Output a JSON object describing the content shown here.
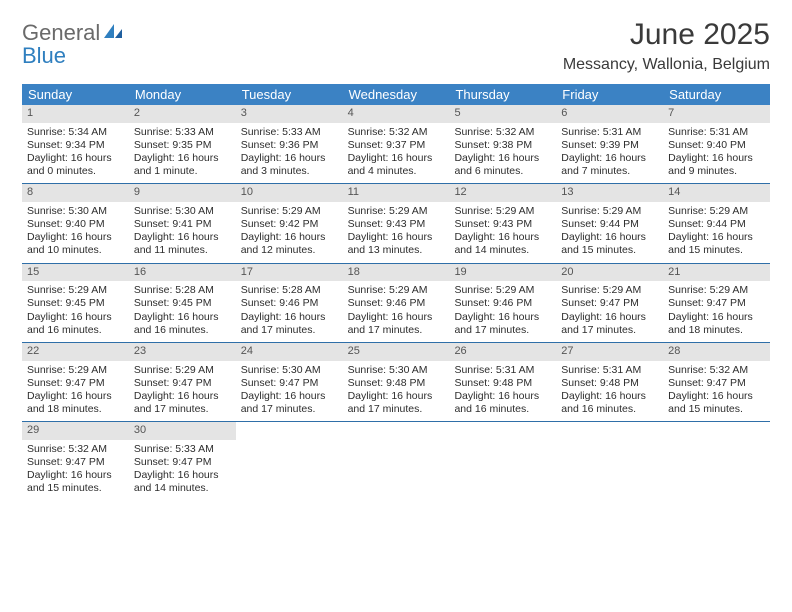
{
  "brand": {
    "part1": "General",
    "part2": "Blue"
  },
  "title": "June 2025",
  "location": "Messancy, Wallonia, Belgium",
  "colors": {
    "header_bg": "#3b82c4",
    "row_border": "#2f6fa8",
    "daynum_bg": "#e4e4e4",
    "text": "#2d2d2d",
    "logo_gray": "#6a6a6a",
    "logo_blue": "#2f7fbf"
  },
  "weekdays": [
    "Sunday",
    "Monday",
    "Tuesday",
    "Wednesday",
    "Thursday",
    "Friday",
    "Saturday"
  ],
  "weeks": [
    [
      {
        "d": "1",
        "sr": "Sunrise: 5:34 AM",
        "ss": "Sunset: 9:34 PM",
        "dl1": "Daylight: 16 hours",
        "dl2": "and 0 minutes."
      },
      {
        "d": "2",
        "sr": "Sunrise: 5:33 AM",
        "ss": "Sunset: 9:35 PM",
        "dl1": "Daylight: 16 hours",
        "dl2": "and 1 minute."
      },
      {
        "d": "3",
        "sr": "Sunrise: 5:33 AM",
        "ss": "Sunset: 9:36 PM",
        "dl1": "Daylight: 16 hours",
        "dl2": "and 3 minutes."
      },
      {
        "d": "4",
        "sr": "Sunrise: 5:32 AM",
        "ss": "Sunset: 9:37 PM",
        "dl1": "Daylight: 16 hours",
        "dl2": "and 4 minutes."
      },
      {
        "d": "5",
        "sr": "Sunrise: 5:32 AM",
        "ss": "Sunset: 9:38 PM",
        "dl1": "Daylight: 16 hours",
        "dl2": "and 6 minutes."
      },
      {
        "d": "6",
        "sr": "Sunrise: 5:31 AM",
        "ss": "Sunset: 9:39 PM",
        "dl1": "Daylight: 16 hours",
        "dl2": "and 7 minutes."
      },
      {
        "d": "7",
        "sr": "Sunrise: 5:31 AM",
        "ss": "Sunset: 9:40 PM",
        "dl1": "Daylight: 16 hours",
        "dl2": "and 9 minutes."
      }
    ],
    [
      {
        "d": "8",
        "sr": "Sunrise: 5:30 AM",
        "ss": "Sunset: 9:40 PM",
        "dl1": "Daylight: 16 hours",
        "dl2": "and 10 minutes."
      },
      {
        "d": "9",
        "sr": "Sunrise: 5:30 AM",
        "ss": "Sunset: 9:41 PM",
        "dl1": "Daylight: 16 hours",
        "dl2": "and 11 minutes."
      },
      {
        "d": "10",
        "sr": "Sunrise: 5:29 AM",
        "ss": "Sunset: 9:42 PM",
        "dl1": "Daylight: 16 hours",
        "dl2": "and 12 minutes."
      },
      {
        "d": "11",
        "sr": "Sunrise: 5:29 AM",
        "ss": "Sunset: 9:43 PM",
        "dl1": "Daylight: 16 hours",
        "dl2": "and 13 minutes."
      },
      {
        "d": "12",
        "sr": "Sunrise: 5:29 AM",
        "ss": "Sunset: 9:43 PM",
        "dl1": "Daylight: 16 hours",
        "dl2": "and 14 minutes."
      },
      {
        "d": "13",
        "sr": "Sunrise: 5:29 AM",
        "ss": "Sunset: 9:44 PM",
        "dl1": "Daylight: 16 hours",
        "dl2": "and 15 minutes."
      },
      {
        "d": "14",
        "sr": "Sunrise: 5:29 AM",
        "ss": "Sunset: 9:44 PM",
        "dl1": "Daylight: 16 hours",
        "dl2": "and 15 minutes."
      }
    ],
    [
      {
        "d": "15",
        "sr": "Sunrise: 5:29 AM",
        "ss": "Sunset: 9:45 PM",
        "dl1": "Daylight: 16 hours",
        "dl2": "and 16 minutes."
      },
      {
        "d": "16",
        "sr": "Sunrise: 5:28 AM",
        "ss": "Sunset: 9:45 PM",
        "dl1": "Daylight: 16 hours",
        "dl2": "and 16 minutes."
      },
      {
        "d": "17",
        "sr": "Sunrise: 5:28 AM",
        "ss": "Sunset: 9:46 PM",
        "dl1": "Daylight: 16 hours",
        "dl2": "and 17 minutes."
      },
      {
        "d": "18",
        "sr": "Sunrise: 5:29 AM",
        "ss": "Sunset: 9:46 PM",
        "dl1": "Daylight: 16 hours",
        "dl2": "and 17 minutes."
      },
      {
        "d": "19",
        "sr": "Sunrise: 5:29 AM",
        "ss": "Sunset: 9:46 PM",
        "dl1": "Daylight: 16 hours",
        "dl2": "and 17 minutes."
      },
      {
        "d": "20",
        "sr": "Sunrise: 5:29 AM",
        "ss": "Sunset: 9:47 PM",
        "dl1": "Daylight: 16 hours",
        "dl2": "and 17 minutes."
      },
      {
        "d": "21",
        "sr": "Sunrise: 5:29 AM",
        "ss": "Sunset: 9:47 PM",
        "dl1": "Daylight: 16 hours",
        "dl2": "and 18 minutes."
      }
    ],
    [
      {
        "d": "22",
        "sr": "Sunrise: 5:29 AM",
        "ss": "Sunset: 9:47 PM",
        "dl1": "Daylight: 16 hours",
        "dl2": "and 18 minutes."
      },
      {
        "d": "23",
        "sr": "Sunrise: 5:29 AM",
        "ss": "Sunset: 9:47 PM",
        "dl1": "Daylight: 16 hours",
        "dl2": "and 17 minutes."
      },
      {
        "d": "24",
        "sr": "Sunrise: 5:30 AM",
        "ss": "Sunset: 9:47 PM",
        "dl1": "Daylight: 16 hours",
        "dl2": "and 17 minutes."
      },
      {
        "d": "25",
        "sr": "Sunrise: 5:30 AM",
        "ss": "Sunset: 9:48 PM",
        "dl1": "Daylight: 16 hours",
        "dl2": "and 17 minutes."
      },
      {
        "d": "26",
        "sr": "Sunrise: 5:31 AM",
        "ss": "Sunset: 9:48 PM",
        "dl1": "Daylight: 16 hours",
        "dl2": "and 16 minutes."
      },
      {
        "d": "27",
        "sr": "Sunrise: 5:31 AM",
        "ss": "Sunset: 9:48 PM",
        "dl1": "Daylight: 16 hours",
        "dl2": "and 16 minutes."
      },
      {
        "d": "28",
        "sr": "Sunrise: 5:32 AM",
        "ss": "Sunset: 9:47 PM",
        "dl1": "Daylight: 16 hours",
        "dl2": "and 15 minutes."
      }
    ],
    [
      {
        "d": "29",
        "sr": "Sunrise: 5:32 AM",
        "ss": "Sunset: 9:47 PM",
        "dl1": "Daylight: 16 hours",
        "dl2": "and 15 minutes."
      },
      {
        "d": "30",
        "sr": "Sunrise: 5:33 AM",
        "ss": "Sunset: 9:47 PM",
        "dl1": "Daylight: 16 hours",
        "dl2": "and 14 minutes."
      },
      null,
      null,
      null,
      null,
      null
    ]
  ]
}
